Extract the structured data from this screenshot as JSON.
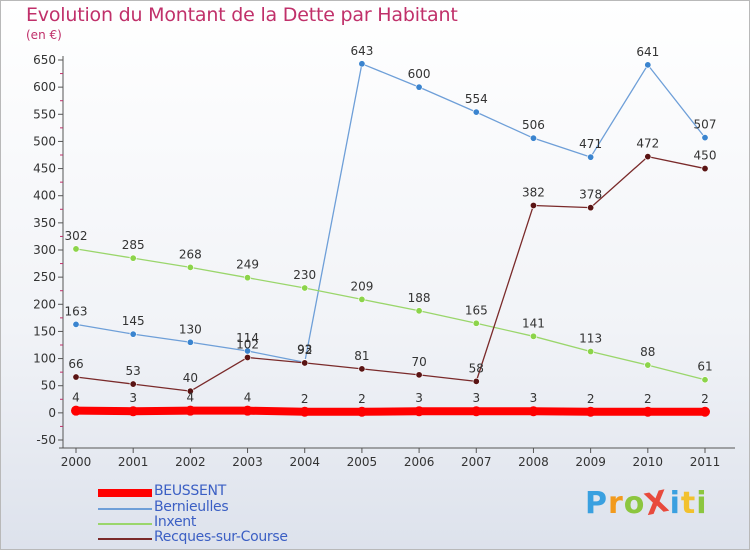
{
  "title": "Evolution du Montant de la Dette par Habitant",
  "unit": "(en €)",
  "logo": "ProXiti",
  "chart_data": {
    "type": "line",
    "title": "Evolution du Montant de la Dette par Habitant",
    "ylabel": "(en €)",
    "x": [
      "2000",
      "2001",
      "2002",
      "2003",
      "2004",
      "2005",
      "2006",
      "2007",
      "2008",
      "2009",
      "2010",
      "2011"
    ],
    "ylim": [
      -50,
      650
    ],
    "yticks": [
      -50,
      0,
      50,
      100,
      150,
      200,
      250,
      300,
      350,
      400,
      450,
      500,
      550,
      600,
      650
    ],
    "grid": false,
    "legend": "bottom-left",
    "series": [
      {
        "name": "BEUSSENT",
        "color": "#ff0000",
        "values": [
          4,
          3,
          4,
          4,
          2,
          2,
          3,
          3,
          3,
          2,
          2,
          2
        ],
        "labels": [
          "4",
          "3",
          "4",
          "4",
          "2",
          "2",
          "3",
          "3",
          "3",
          "2",
          "2",
          "2"
        ]
      },
      {
        "name": "Bernieulles",
        "color": "#6e9fd8",
        "marker": "#3a84cf",
        "values": [
          163,
          145,
          130,
          114,
          93,
          643,
          600,
          554,
          506,
          471,
          641,
          507
        ],
        "labels": [
          "163",
          "145",
          "130",
          "114",
          "93",
          "643",
          "600",
          "554",
          "506",
          "471",
          "641",
          "507"
        ]
      },
      {
        "name": "Inxent",
        "color": "#9ad66b",
        "marker": "#8cd44a",
        "values": [
          302,
          285,
          268,
          249,
          230,
          209,
          188,
          165,
          141,
          113,
          88,
          61
        ],
        "labels": [
          "302",
          "285",
          "268",
          "249",
          "230",
          "209",
          "188",
          "165",
          "141",
          "113",
          "88",
          "61"
        ]
      },
      {
        "name": "Recques-sur-Course",
        "color": "#7a2a2a",
        "marker": "#5a1414",
        "values": [
          66,
          53,
          40,
          102,
          92,
          81,
          70,
          58,
          382,
          378,
          472,
          450
        ],
        "labels": [
          "66",
          "53",
          "40",
          "102",
          "92",
          "81",
          "70",
          "58",
          "382",
          "378",
          "472",
          "450"
        ]
      }
    ]
  }
}
